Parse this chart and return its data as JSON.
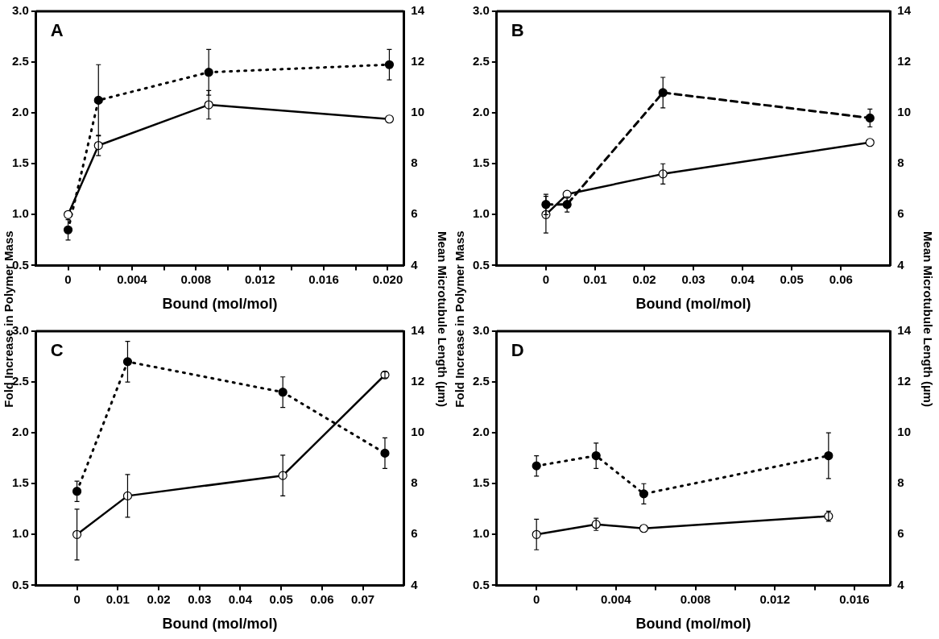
{
  "chart_data": [
    {
      "type": "line",
      "xlabel": "Bound (mol/mol)",
      "ylabel": "Fold Increase in Polymer Mass",
      "y2label": "Mean Microtubule Length (µm)",
      "annotations": [
        "A"
      ],
      "xlim": [
        -0.002,
        0.021
      ],
      "xticks": [
        0,
        {
          "value": 0.002,
          "label": null
        },
        0.004,
        {
          "value": 0.006,
          "label": null
        },
        0.008,
        {
          "value": 0.01,
          "label": null
        },
        0.012,
        {
          "value": 0.014,
          "label": null
        },
        0.016,
        {
          "value": 0.018,
          "label": null
        },
        {
          "value": 0.02,
          "label": "0.020"
        }
      ],
      "ylim": [
        0.5,
        3.0
      ],
      "yticks": [
        0.5,
        {
          "value": 1,
          "label": "1.0"
        },
        1.5,
        {
          "value": 2,
          "label": "2.0"
        },
        2.5,
        {
          "value": 3,
          "label": "3.0"
        }
      ],
      "y2lim": [
        4,
        14
      ],
      "y2ticks": [
        4,
        6,
        8,
        10,
        12,
        14
      ],
      "grid": false,
      "legend": false,
      "marker": "circle",
      "series": [
        {
          "color": "#000000",
          "line_style": "solid",
          "x": [
            0,
            0.0019,
            0.0088,
            0.0201
          ],
          "values": [
            1.0,
            1.68,
            2.08,
            1.94
          ],
          "errors": [
            null,
            0.1,
            0.14,
            null
          ]
        },
        {
          "color": "#000000",
          "line_style": "dotted",
          "axis": "y2",
          "x": [
            0,
            0.0019,
            0.0088,
            0.0201
          ],
          "values": [
            5.4,
            10.5,
            11.6,
            11.9
          ],
          "errors": [
            0.4,
            1.4,
            0.9,
            0.6
          ]
        }
      ]
    },
    {
      "type": "line",
      "xlabel": "Bound (mol/mol)",
      "ylabel": "Fold Increase in Polymer Mass",
      "y2label": "Mean Microtubule Length (µm)",
      "annotations": [
        "B"
      ],
      "xlim": [
        -0.01,
        0.07
      ],
      "xticks": [
        0,
        0.01,
        0.02,
        0.03,
        0.04,
        0.05,
        0.06
      ],
      "ylim": [
        0.5,
        3.0
      ],
      "yticks": [
        0.5,
        {
          "value": 1,
          "label": "1.0"
        },
        1.5,
        {
          "value": 2,
          "label": "2.0"
        },
        2.5,
        {
          "value": 3,
          "label": "3.0"
        }
      ],
      "y2lim": [
        4,
        14
      ],
      "y2ticks": [
        4,
        6,
        8,
        10,
        12,
        14
      ],
      "grid": false,
      "legend": false,
      "marker": "circle",
      "series": [
        {
          "color": "#000000",
          "line_style": "solid",
          "x": [
            0,
            0.0043,
            0.0238,
            0.0659
          ],
          "values": [
            1.0,
            1.2,
            1.4,
            1.71
          ],
          "errors": [
            0.18,
            null,
            0.1,
            null
          ]
        },
        {
          "color": "#000000",
          "line_style": "dashed",
          "axis": "y2",
          "x": [
            0,
            0.0043,
            0.0238,
            0.0659
          ],
          "values": [
            6.4,
            6.4,
            10.8,
            9.8
          ],
          "errors": [
            0.4,
            0.3,
            0.6,
            0.35
          ]
        }
      ]
    },
    {
      "type": "line",
      "xlabel": "Bound (mol/mol)",
      "annotations": [
        "C"
      ],
      "xlim": [
        -0.01,
        0.08
      ],
      "xticks": [
        0,
        0.01,
        0.02,
        0.03,
        0.04,
        0.05,
        0.06,
        0.07
      ],
      "ylim": [
        0.5,
        3.0
      ],
      "yticks": [
        0.5,
        {
          "value": 1,
          "label": "1.0"
        },
        1.5,
        {
          "value": 2,
          "label": "2.0"
        },
        2.5,
        {
          "value": 3,
          "label": "3.0"
        }
      ],
      "y2lim": [
        4,
        14
      ],
      "y2ticks": [
        4,
        6,
        8,
        10,
        12,
        14
      ],
      "grid": false,
      "legend": false,
      "marker": "circle",
      "series": [
        {
          "color": "#000000",
          "line_style": "solid",
          "x": [
            0,
            0.0124,
            0.0504,
            0.0754
          ],
          "values": [
            1.0,
            1.38,
            1.58,
            2.57
          ],
          "errors": [
            0.25,
            0.21,
            0.2,
            0.03
          ]
        },
        {
          "color": "#000000",
          "line_style": "dotted",
          "axis": "y2",
          "x": [
            0,
            0.0124,
            0.0504,
            0.0754
          ],
          "values": [
            7.7,
            12.8,
            11.6,
            9.2
          ],
          "errors": [
            0.4,
            0.8,
            0.6,
            0.6
          ]
        }
      ]
    },
    {
      "type": "line",
      "xlabel": "Bound (mol/mol)",
      "annotations": [
        "D"
      ],
      "xlim": [
        -0.002,
        0.0178
      ],
      "xticks": [
        0,
        {
          "value": 0.002,
          "label": null
        },
        0.004,
        {
          "value": 0.006,
          "label": null
        },
        0.008,
        {
          "value": 0.01,
          "label": null
        },
        0.012,
        {
          "value": 0.014,
          "label": null
        },
        0.016
      ],
      "ylim": [
        0.5,
        3.0
      ],
      "yticks": [
        0.5,
        {
          "value": 1,
          "label": "1.0"
        },
        1.5,
        {
          "value": 2,
          "label": "2.0"
        },
        2.5,
        {
          "value": 3,
          "label": "3.0"
        }
      ],
      "y2lim": [
        4,
        14
      ],
      "y2ticks": [
        4,
        6,
        8,
        10,
        12,
        14
      ],
      "grid": false,
      "legend": false,
      "marker": "circle",
      "series": [
        {
          "color": "#000000",
          "line_style": "solid",
          "x": [
            0,
            0.003,
            0.0054,
            0.0147
          ],
          "values": [
            1.0,
            1.1,
            1.06,
            1.18
          ],
          "errors": [
            0.15,
            0.06,
            null,
            0.05
          ]
        },
        {
          "color": "#000000",
          "line_style": "dotted",
          "axis": "y2",
          "x": [
            0,
            0.003,
            0.0054,
            0.0147
          ],
          "values": [
            8.7,
            9.1,
            7.6,
            9.1
          ],
          "errors": [
            0.4,
            0.5,
            0.4,
            0.9
          ]
        }
      ]
    }
  ]
}
